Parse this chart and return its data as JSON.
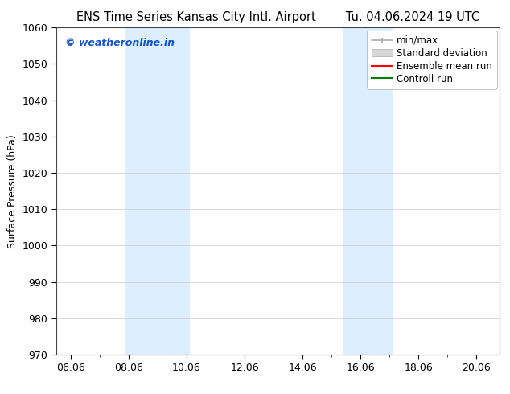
{
  "title_left": "ENS Time Series Kansas City Intl. Airport",
  "title_right": "Tu. 04.06.2024 19 UTC",
  "ylabel": "Surface Pressure (hPa)",
  "ylim": [
    970,
    1060
  ],
  "yticks": [
    970,
    980,
    990,
    1000,
    1010,
    1020,
    1030,
    1040,
    1050,
    1060
  ],
  "xlim_start": 5.5,
  "xlim_end": 20.8,
  "xtick_labels": [
    "06.06",
    "08.06",
    "10.06",
    "12.06",
    "14.06",
    "16.06",
    "18.06",
    "20.06"
  ],
  "xtick_positions": [
    6.0,
    8.0,
    10.0,
    12.0,
    14.0,
    16.0,
    18.0,
    20.0
  ],
  "shaded_bands": [
    {
      "x_start": 7.9,
      "x_end": 10.1,
      "color": "#ddeeff"
    },
    {
      "x_start": 15.4,
      "x_end": 17.1,
      "color": "#ddeeff"
    }
  ],
  "watermark_text": "© weatheronline.in",
  "watermark_color": "#1155cc",
  "background_color": "#ffffff",
  "grid_color": "#cccccc",
  "title_fontsize": 10.5,
  "axis_label_fontsize": 9,
  "tick_fontsize": 9,
  "legend_fontsize": 8.5
}
